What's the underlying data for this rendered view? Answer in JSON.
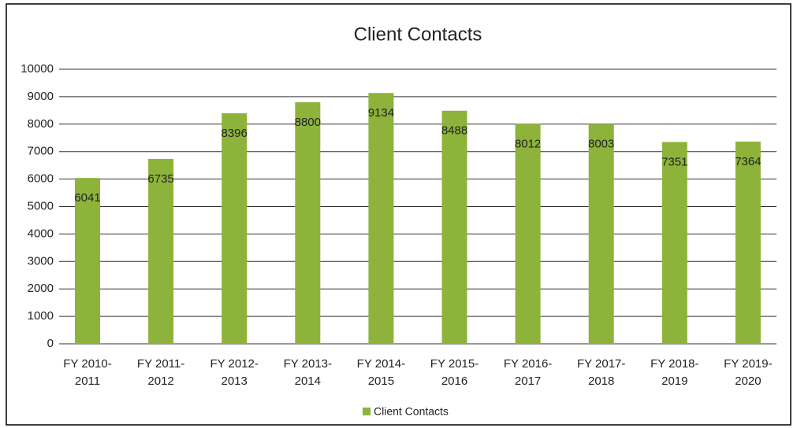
{
  "chart_data": {
    "type": "bar",
    "title": "Client Contacts",
    "categories": [
      "FY 2010-2011",
      "FY 2011-2012",
      "FY 2012-2013",
      "FY 2013-2014",
      "FY 2014-2015",
      "FY 2015-2016",
      "FY 2016-2017",
      "FY 2017-2018",
      "FY 2018-2019",
      "FY 2019-2020"
    ],
    "series": [
      {
        "name": "Client Contacts",
        "color": "#8db33a",
        "values": [
          6041,
          6735,
          8396,
          8800,
          9134,
          8488,
          8012,
          8003,
          7351,
          7364
        ]
      }
    ],
    "ylim": [
      0,
      10000
    ],
    "yticks": [
      0,
      1000,
      2000,
      3000,
      4000,
      5000,
      6000,
      7000,
      8000,
      9000,
      10000
    ],
    "grid": true,
    "legend": "bottom"
  }
}
